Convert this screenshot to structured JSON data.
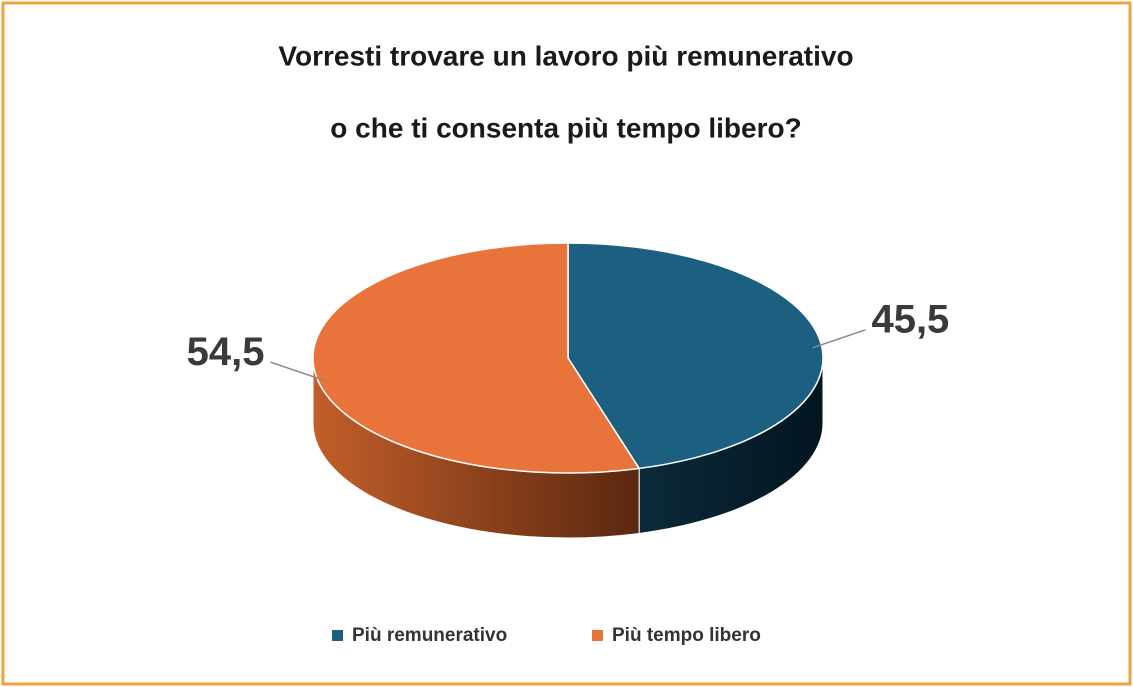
{
  "chart_data": {
    "type": "pie3d",
    "title": [
      "Vorresti trovare un lavoro più remunerativo",
      "o che ti consenta più tempo libero?"
    ],
    "categories": [
      "Più remunerativo",
      "Più tempo libero"
    ],
    "values": [
      45.5,
      54.5
    ],
    "value_labels": [
      "45,5",
      "54,5"
    ],
    "colors": [
      "#1c5f80",
      "#e8743b"
    ],
    "legend": "bottom"
  }
}
